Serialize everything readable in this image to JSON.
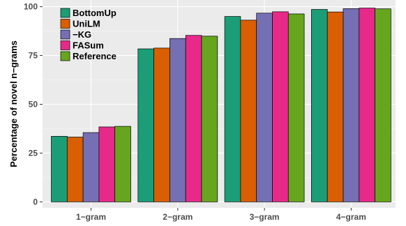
{
  "chart_data": {
    "type": "bar",
    "title": "",
    "xlabel": "",
    "ylabel": "Percentage of novel n−grams",
    "categories": [
      "1−gram",
      "2−gram",
      "3−gram",
      "4−gram"
    ],
    "ylim": [
      0,
      100
    ],
    "yticks": [
      0,
      25,
      50,
      75,
      100
    ],
    "grid": true,
    "legend_position": "top-left",
    "series": [
      {
        "name": "BottomUp",
        "color": "#1b9e77",
        "values": [
          33.6,
          78.4,
          95.0,
          98.6
        ]
      },
      {
        "name": "UniLM",
        "color": "#d95f02",
        "values": [
          33.2,
          78.8,
          93.1,
          97.3
        ]
      },
      {
        "name": "−KG",
        "color": "#7570b3",
        "values": [
          35.5,
          83.7,
          96.7,
          99.0
        ]
      },
      {
        "name": "FASum",
        "color": "#e7298a",
        "values": [
          38.4,
          85.3,
          97.4,
          99.3
        ]
      },
      {
        "name": "Reference",
        "color": "#66a61e",
        "values": [
          38.7,
          84.9,
          96.3,
          98.9
        ]
      }
    ]
  }
}
